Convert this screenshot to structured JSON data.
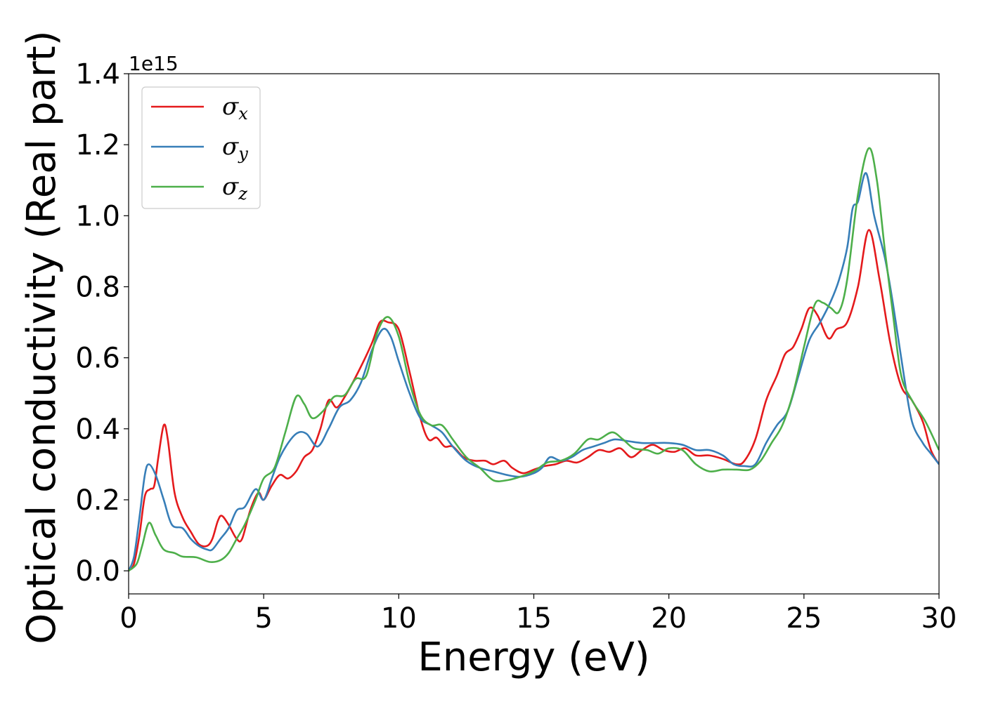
{
  "chart_data": {
    "type": "line",
    "xlabel": "Energy (eV)",
    "ylabel": "Optical conductivity (Real part)",
    "y_offset_label": "1e15",
    "xlim": [
      0,
      30
    ],
    "ylim": [
      -0.065,
      1.4
    ],
    "x_ticks": [
      0,
      5,
      10,
      15,
      20,
      25,
      30
    ],
    "x_tick_labels": [
      "0",
      "5",
      "10",
      "15",
      "20",
      "25",
      "30"
    ],
    "y_ticks": [
      0.0,
      0.2,
      0.4,
      0.6,
      0.8,
      1.0,
      1.2,
      1.4
    ],
    "y_tick_labels": [
      "0.0",
      "0.2",
      "0.4",
      "0.6",
      "0.8",
      "1.0",
      "1.2",
      "1.4"
    ],
    "grid": false,
    "legend_position": "top-left",
    "series": [
      {
        "name": "σx",
        "symbol": "σ",
        "subscript": "x",
        "color": "#e41a1c",
        "points": [
          [
            0,
            0
          ],
          [
            0.2,
            0.02
          ],
          [
            0.4,
            0.1
          ],
          [
            0.6,
            0.21
          ],
          [
            0.8,
            0.23
          ],
          [
            0.95,
            0.24
          ],
          [
            1.1,
            0.32
          ],
          [
            1.3,
            0.41
          ],
          [
            1.45,
            0.37
          ],
          [
            1.7,
            0.22
          ],
          [
            2.0,
            0.15
          ],
          [
            2.3,
            0.11
          ],
          [
            2.6,
            0.075
          ],
          [
            2.9,
            0.07
          ],
          [
            3.1,
            0.09
          ],
          [
            3.3,
            0.14
          ],
          [
            3.45,
            0.155
          ],
          [
            3.7,
            0.13
          ],
          [
            4.0,
            0.09
          ],
          [
            4.2,
            0.09
          ],
          [
            4.5,
            0.17
          ],
          [
            4.8,
            0.22
          ],
          [
            5.0,
            0.2
          ],
          [
            5.3,
            0.24
          ],
          [
            5.6,
            0.27
          ],
          [
            5.9,
            0.26
          ],
          [
            6.2,
            0.28
          ],
          [
            6.5,
            0.32
          ],
          [
            6.8,
            0.34
          ],
          [
            7.1,
            0.4
          ],
          [
            7.4,
            0.48
          ],
          [
            7.7,
            0.46
          ],
          [
            8.0,
            0.49
          ],
          [
            8.5,
            0.56
          ],
          [
            9.0,
            0.64
          ],
          [
            9.3,
            0.7
          ],
          [
            9.6,
            0.7
          ],
          [
            10.0,
            0.68
          ],
          [
            10.4,
            0.56
          ],
          [
            10.8,
            0.43
          ],
          [
            11.1,
            0.37
          ],
          [
            11.4,
            0.375
          ],
          [
            11.7,
            0.35
          ],
          [
            12.0,
            0.35
          ],
          [
            12.4,
            0.32
          ],
          [
            12.8,
            0.31
          ],
          [
            13.2,
            0.31
          ],
          [
            13.5,
            0.3
          ],
          [
            13.9,
            0.31
          ],
          [
            14.2,
            0.29
          ],
          [
            14.6,
            0.275
          ],
          [
            15.0,
            0.285
          ],
          [
            15.4,
            0.295
          ],
          [
            15.8,
            0.3
          ],
          [
            16.2,
            0.31
          ],
          [
            16.6,
            0.305
          ],
          [
            17.0,
            0.32
          ],
          [
            17.4,
            0.34
          ],
          [
            17.8,
            0.335
          ],
          [
            18.2,
            0.345
          ],
          [
            18.6,
            0.32
          ],
          [
            19.0,
            0.34
          ],
          [
            19.4,
            0.355
          ],
          [
            19.8,
            0.34
          ],
          [
            20.2,
            0.335
          ],
          [
            20.6,
            0.345
          ],
          [
            21.0,
            0.325
          ],
          [
            21.5,
            0.325
          ],
          [
            22.0,
            0.315
          ],
          [
            22.5,
            0.3
          ],
          [
            22.8,
            0.31
          ],
          [
            23.2,
            0.37
          ],
          [
            23.6,
            0.48
          ],
          [
            24.0,
            0.55
          ],
          [
            24.3,
            0.61
          ],
          [
            24.6,
            0.63
          ],
          [
            24.9,
            0.68
          ],
          [
            25.2,
            0.74
          ],
          [
            25.5,
            0.72
          ],
          [
            25.9,
            0.655
          ],
          [
            26.2,
            0.68
          ],
          [
            26.6,
            0.7
          ],
          [
            27.0,
            0.8
          ],
          [
            27.4,
            0.96
          ],
          [
            27.8,
            0.82
          ],
          [
            28.2,
            0.64
          ],
          [
            28.6,
            0.52
          ],
          [
            29.0,
            0.48
          ],
          [
            29.4,
            0.42
          ],
          [
            29.7,
            0.34
          ],
          [
            30.0,
            0.3
          ]
        ]
      },
      {
        "name": "σy",
        "symbol": "σ",
        "subscript": "y",
        "color": "#377eb8",
        "points": [
          [
            0,
            0
          ],
          [
            0.2,
            0.04
          ],
          [
            0.4,
            0.15
          ],
          [
            0.6,
            0.27
          ],
          [
            0.75,
            0.3
          ],
          [
            1.0,
            0.27
          ],
          [
            1.3,
            0.2
          ],
          [
            1.6,
            0.13
          ],
          [
            2.0,
            0.12
          ],
          [
            2.3,
            0.09
          ],
          [
            2.6,
            0.07
          ],
          [
            2.9,
            0.06
          ],
          [
            3.1,
            0.06
          ],
          [
            3.4,
            0.09
          ],
          [
            3.7,
            0.12
          ],
          [
            4.0,
            0.17
          ],
          [
            4.3,
            0.18
          ],
          [
            4.7,
            0.23
          ],
          [
            5.0,
            0.2
          ],
          [
            5.3,
            0.26
          ],
          [
            5.6,
            0.32
          ],
          [
            6.0,
            0.37
          ],
          [
            6.3,
            0.39
          ],
          [
            6.6,
            0.385
          ],
          [
            7.0,
            0.35
          ],
          [
            7.4,
            0.4
          ],
          [
            7.8,
            0.46
          ],
          [
            8.2,
            0.48
          ],
          [
            8.6,
            0.53
          ],
          [
            9.0,
            0.62
          ],
          [
            9.4,
            0.68
          ],
          [
            9.7,
            0.66
          ],
          [
            10.0,
            0.59
          ],
          [
            10.4,
            0.5
          ],
          [
            10.8,
            0.43
          ],
          [
            11.2,
            0.41
          ],
          [
            11.6,
            0.39
          ],
          [
            12.0,
            0.35
          ],
          [
            12.5,
            0.31
          ],
          [
            13.0,
            0.29
          ],
          [
            13.5,
            0.28
          ],
          [
            14.0,
            0.27
          ],
          [
            14.5,
            0.265
          ],
          [
            15.0,
            0.275
          ],
          [
            15.3,
            0.29
          ],
          [
            15.6,
            0.32
          ],
          [
            16.0,
            0.31
          ],
          [
            16.4,
            0.32
          ],
          [
            16.8,
            0.34
          ],
          [
            17.2,
            0.35
          ],
          [
            17.6,
            0.36
          ],
          [
            18.0,
            0.37
          ],
          [
            18.5,
            0.365
          ],
          [
            19.0,
            0.36
          ],
          [
            19.5,
            0.36
          ],
          [
            20.0,
            0.36
          ],
          [
            20.5,
            0.355
          ],
          [
            21.0,
            0.34
          ],
          [
            21.5,
            0.34
          ],
          [
            22.0,
            0.325
          ],
          [
            22.4,
            0.3
          ],
          [
            22.8,
            0.295
          ],
          [
            23.2,
            0.3
          ],
          [
            23.6,
            0.36
          ],
          [
            24.0,
            0.41
          ],
          [
            24.4,
            0.45
          ],
          [
            24.8,
            0.55
          ],
          [
            25.2,
            0.65
          ],
          [
            25.6,
            0.7
          ],
          [
            26.0,
            0.76
          ],
          [
            26.3,
            0.82
          ],
          [
            26.6,
            0.91
          ],
          [
            26.8,
            1.02
          ],
          [
            27.0,
            1.04
          ],
          [
            27.3,
            1.12
          ],
          [
            27.6,
            1.0
          ],
          [
            28.0,
            0.88
          ],
          [
            28.3,
            0.75
          ],
          [
            28.7,
            0.55
          ],
          [
            29.0,
            0.42
          ],
          [
            29.4,
            0.36
          ],
          [
            29.7,
            0.33
          ],
          [
            30.0,
            0.3
          ]
        ]
      },
      {
        "name": "σz",
        "symbol": "σ",
        "subscript": "z",
        "color": "#4daf4a",
        "points": [
          [
            0,
            0
          ],
          [
            0.3,
            0.02
          ],
          [
            0.5,
            0.07
          ],
          [
            0.75,
            0.135
          ],
          [
            1.0,
            0.1
          ],
          [
            1.3,
            0.06
          ],
          [
            1.7,
            0.05
          ],
          [
            2.0,
            0.04
          ],
          [
            2.5,
            0.038
          ],
          [
            3.0,
            0.025
          ],
          [
            3.4,
            0.03
          ],
          [
            3.7,
            0.05
          ],
          [
            4.0,
            0.09
          ],
          [
            4.3,
            0.13
          ],
          [
            4.7,
            0.2
          ],
          [
            5.0,
            0.26
          ],
          [
            5.4,
            0.29
          ],
          [
            5.8,
            0.39
          ],
          [
            6.2,
            0.49
          ],
          [
            6.5,
            0.47
          ],
          [
            6.8,
            0.43
          ],
          [
            7.2,
            0.45
          ],
          [
            7.6,
            0.49
          ],
          [
            8.0,
            0.495
          ],
          [
            8.4,
            0.54
          ],
          [
            8.8,
            0.55
          ],
          [
            9.2,
            0.67
          ],
          [
            9.6,
            0.715
          ],
          [
            10.0,
            0.66
          ],
          [
            10.4,
            0.53
          ],
          [
            10.8,
            0.44
          ],
          [
            11.2,
            0.41
          ],
          [
            11.6,
            0.41
          ],
          [
            12.0,
            0.37
          ],
          [
            12.5,
            0.32
          ],
          [
            13.0,
            0.29
          ],
          [
            13.5,
            0.255
          ],
          [
            14.0,
            0.255
          ],
          [
            14.5,
            0.265
          ],
          [
            15.0,
            0.28
          ],
          [
            15.5,
            0.305
          ],
          [
            16.0,
            0.31
          ],
          [
            16.5,
            0.33
          ],
          [
            17.0,
            0.37
          ],
          [
            17.4,
            0.37
          ],
          [
            17.9,
            0.39
          ],
          [
            18.3,
            0.37
          ],
          [
            18.7,
            0.345
          ],
          [
            19.2,
            0.34
          ],
          [
            19.6,
            0.33
          ],
          [
            20.0,
            0.345
          ],
          [
            20.5,
            0.34
          ],
          [
            21.0,
            0.3
          ],
          [
            21.5,
            0.28
          ],
          [
            22.0,
            0.285
          ],
          [
            22.5,
            0.285
          ],
          [
            23.0,
            0.285
          ],
          [
            23.4,
            0.31
          ],
          [
            23.8,
            0.36
          ],
          [
            24.2,
            0.41
          ],
          [
            24.6,
            0.5
          ],
          [
            25.0,
            0.63
          ],
          [
            25.4,
            0.75
          ],
          [
            25.7,
            0.755
          ],
          [
            26.0,
            0.74
          ],
          [
            26.3,
            0.73
          ],
          [
            26.6,
            0.82
          ],
          [
            27.0,
            1.06
          ],
          [
            27.4,
            1.19
          ],
          [
            27.7,
            1.1
          ],
          [
            28.0,
            0.9
          ],
          [
            28.3,
            0.72
          ],
          [
            28.6,
            0.55
          ],
          [
            29.0,
            0.48
          ],
          [
            29.5,
            0.42
          ],
          [
            30.0,
            0.34
          ]
        ]
      }
    ]
  }
}
